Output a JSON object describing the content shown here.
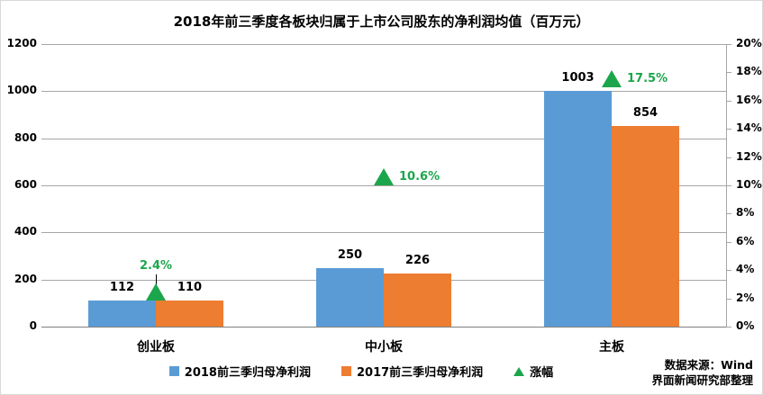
{
  "title": "2018年前三季度各板块归属于上市公司股东的净利润均值（百万元）",
  "source": {
    "line1": "数据来源：Wind",
    "line2": "界面新闻研究部整理"
  },
  "colors": {
    "bar_2018": "#5b9bd5",
    "bar_2017": "#ed7d31",
    "growth_green": "#1ba64b",
    "gridline": "#a6a6a6",
    "axis_line": "#808080",
    "leader_line": "#000000",
    "border": "#d9d9d9",
    "text": "#000000"
  },
  "legend": {
    "items": [
      {
        "label": "2018前三季归母净利润",
        "marker": "square",
        "color": "#5b9bd5"
      },
      {
        "label": "2017前三季归母净利润",
        "marker": "square",
        "color": "#ed7d31"
      },
      {
        "label": "涨幅",
        "marker": "triangle",
        "color": "#1ba64b"
      }
    ]
  },
  "chart_data": {
    "type": "bar",
    "categories": [
      "创业板",
      "中小板",
      "主板"
    ],
    "series": [
      {
        "name": "2018前三季归母净利润",
        "type": "bar",
        "axis": "left",
        "values": [
          112,
          250,
          1003
        ],
        "color": "#5b9bd5"
      },
      {
        "name": "2017前三季归母净利润",
        "type": "bar",
        "axis": "left",
        "values": [
          110,
          226,
          854
        ],
        "color": "#ed7d31"
      },
      {
        "name": "涨幅",
        "type": "triangle-marker",
        "axis": "right",
        "values_pct": [
          2.4,
          10.6,
          17.5
        ],
        "labels": [
          "2.4%",
          "10.6%",
          "17.5%"
        ],
        "label_pos": [
          "above",
          "right",
          "right"
        ],
        "color": "#1ba64b"
      }
    ],
    "left_axis": {
      "min": 0,
      "max": 1200,
      "step": 200,
      "ticks": [
        "1200",
        "1000",
        "800",
        "600",
        "400",
        "200",
        "0"
      ]
    },
    "right_axis": {
      "min": 0,
      "max": 20,
      "step": 2,
      "ticks": [
        "20%",
        "18%",
        "16%",
        "14%",
        "12%",
        "10%",
        "8%",
        "6%",
        "4%",
        "2%",
        "0%"
      ]
    },
    "grid": true,
    "legend_position": "bottom",
    "bar_value_labels": true
  }
}
